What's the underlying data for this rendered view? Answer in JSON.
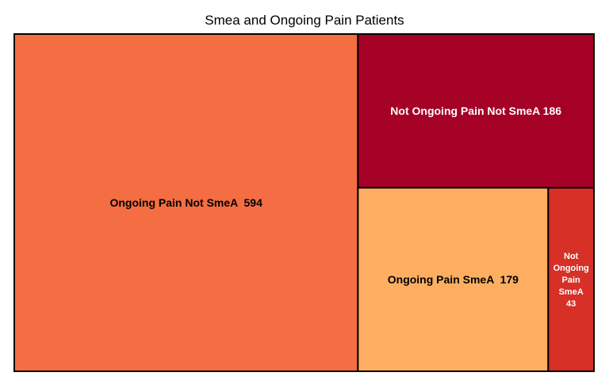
{
  "chart_data": {
    "type": "treemap",
    "title": "Smea and Ongoing Pain Patients",
    "items": [
      {
        "name": "Ongoing Pain Not SmeA",
        "value": 594,
        "label": "Ongoing Pain Not SmeA  594",
        "color": "#f46d43",
        "text_color": "#000000"
      },
      {
        "name": "Not Ongoing Pain Not SmeA",
        "value": 186,
        "label": "Not Ongoing Pain Not SmeA 186",
        "color": "#a50026",
        "text_color": "#ffffff"
      },
      {
        "name": "Ongoing Pain SmeA",
        "value": 179,
        "label": "Ongoing Pain SmeA  179",
        "color": "#fdae61",
        "text_color": "#000000"
      },
      {
        "name": "Not Ongoing Pain SmeA",
        "value": 43,
        "label_lines": [
          "Not",
          "Ongoing",
          "Pain",
          "SmeA",
          "43"
        ],
        "color": "#d73027",
        "text_color": "#ffffff"
      }
    ]
  }
}
